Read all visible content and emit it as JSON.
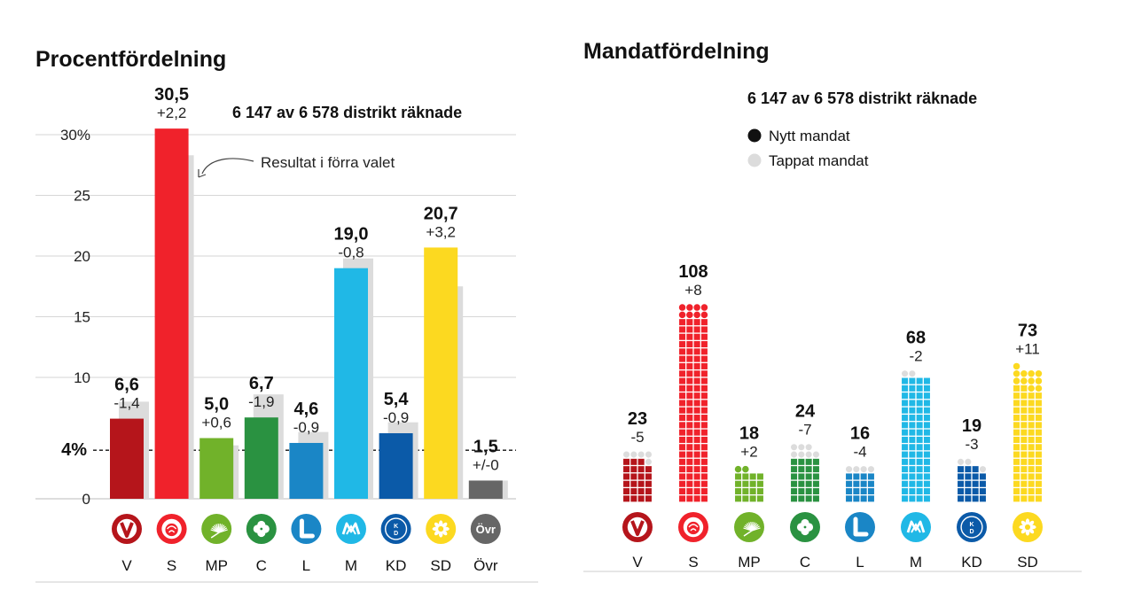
{
  "chart_data": [
    {
      "type": "bar",
      "title": "Procentfördelning",
      "subtitle": "6 147 av 6 578 distrikt räknade",
      "annotation": "Resultat i förra valet",
      "threshold": 4,
      "threshold_label": "4%",
      "ylim": [
        0,
        31
      ],
      "yticks": [
        {
          "value": 0,
          "label": "0"
        },
        {
          "value": 10,
          "label": "10"
        },
        {
          "value": 15,
          "label": "15"
        },
        {
          "value": 20,
          "label": "20"
        },
        {
          "value": 25,
          "label": "25"
        },
        {
          "value": 30,
          "label": "30%"
        }
      ],
      "categories": [
        "V",
        "S",
        "MP",
        "C",
        "L",
        "M",
        "KD",
        "SD",
        "Övr"
      ],
      "series": [
        {
          "name": "Resultat",
          "values": [
            6.6,
            30.5,
            5.0,
            6.7,
            4.6,
            19.0,
            5.4,
            20.7,
            1.5
          ]
        },
        {
          "name": "Resultat i förra valet",
          "values": [
            8.0,
            28.3,
            4.4,
            8.6,
            5.5,
            19.8,
            6.3,
            17.5,
            1.5
          ]
        }
      ],
      "value_labels": [
        "6,6",
        "30,5",
        "5,0",
        "6,7",
        "4,6",
        "19,0",
        "5,4",
        "20,7",
        "1,5"
      ],
      "change_labels": [
        "-1,4",
        "+2,2",
        "+0,6",
        "-1,9",
        "-0,9",
        "-0,8",
        "-0,9",
        "+3,2",
        "+/-0"
      ],
      "colors": [
        "#b5151b",
        "#f0222b",
        "#71b22a",
        "#2a9241",
        "#1a86c6",
        "#20b8e6",
        "#0b5aa8",
        "#fcd920",
        "#666666"
      ],
      "prev_color": "#dcdcdc"
    },
    {
      "type": "bar",
      "title": "Mandatfördelning",
      "subtitle": "6 147 av 6 578 distrikt räknade",
      "legend": [
        {
          "label": "Nytt mandat",
          "color": "#111111"
        },
        {
          "label": "Tappat mandat",
          "color": "#dcdcdc"
        }
      ],
      "categories": [
        "V",
        "S",
        "MP",
        "C",
        "L",
        "M",
        "KD",
        "SD"
      ],
      "values": [
        23,
        108,
        18,
        24,
        16,
        68,
        19,
        73
      ],
      "changes": [
        -5,
        8,
        2,
        -7,
        -4,
        -2,
        -3,
        11
      ],
      "value_labels": [
        "23",
        "108",
        "18",
        "24",
        "16",
        "68",
        "19",
        "73"
      ],
      "change_labels": [
        "-5",
        "+8",
        "+2",
        "-7",
        "-4",
        "-2",
        "-3",
        "+11"
      ],
      "colors": [
        "#b5151b",
        "#f0222b",
        "#71b22a",
        "#2a9241",
        "#1a86c6",
        "#20b8e6",
        "#0b5aa8",
        "#fcd920"
      ]
    }
  ],
  "icons": [
    {
      "name": "v-logo-icon",
      "text": "V"
    },
    {
      "name": "s-rose-logo-icon",
      "text": ""
    },
    {
      "name": "mp-dandelion-logo-icon",
      "text": ""
    },
    {
      "name": "c-clover-logo-icon",
      "text": ""
    },
    {
      "name": "l-logo-icon",
      "text": "L"
    },
    {
      "name": "m-logo-icon",
      "text": "M"
    },
    {
      "name": "kd-logo-icon",
      "text": "KD"
    },
    {
      "name": "sd-flower-logo-icon",
      "text": ""
    },
    {
      "name": "ovr-logo-icon",
      "text": "Övr"
    }
  ]
}
